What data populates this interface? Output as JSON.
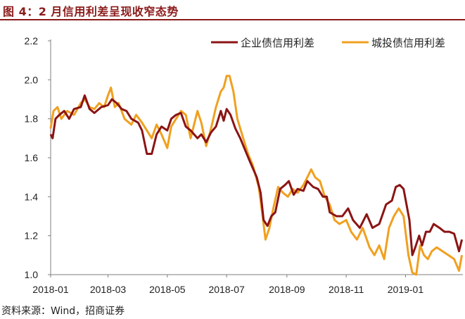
{
  "figure": {
    "title": "图 4：2 月信用利差呈现收窄态势",
    "source": "资料来源：Wind，招商证券"
  },
  "chart_data": {
    "type": "line",
    "xlabel": "",
    "ylabel": "",
    "ylim": [
      1.0,
      2.2
    ],
    "yticks": [
      "1.0",
      "1.2",
      "1.4",
      "1.6",
      "1.8",
      "2.0",
      "2.2"
    ],
    "xticks": [
      "2018-01",
      "2018-03",
      "2018-05",
      "2018-07",
      "2018-09",
      "2018-11",
      "2019-01"
    ],
    "xlim": [
      "2018-01-01",
      "2019-03-01"
    ],
    "grid": false,
    "legend_position": "top-right",
    "series": [
      {
        "name": "企业债信用利差",
        "color": "#8B1414",
        "points": [
          [
            "2018-01-01",
            1.72
          ],
          [
            "2018-01-03",
            1.7
          ],
          [
            "2018-01-06",
            1.8
          ],
          [
            "2018-01-10",
            1.82
          ],
          [
            "2018-01-15",
            1.84
          ],
          [
            "2018-01-20",
            1.8
          ],
          [
            "2018-01-25",
            1.85
          ],
          [
            "2018-02-01",
            1.86
          ],
          [
            "2018-02-05",
            1.92
          ],
          [
            "2018-02-10",
            1.85
          ],
          [
            "2018-02-15",
            1.83
          ],
          [
            "2018-02-22",
            1.86
          ],
          [
            "2018-03-01",
            1.87
          ],
          [
            "2018-03-05",
            1.9
          ],
          [
            "2018-03-10",
            1.88
          ],
          [
            "2018-03-15",
            1.85
          ],
          [
            "2018-03-20",
            1.84
          ],
          [
            "2018-03-25",
            1.8
          ],
          [
            "2018-04-01",
            1.78
          ],
          [
            "2018-04-05",
            1.74
          ],
          [
            "2018-04-10",
            1.62
          ],
          [
            "2018-04-15",
            1.62
          ],
          [
            "2018-04-20",
            1.72
          ],
          [
            "2018-04-25",
            1.76
          ],
          [
            "2018-05-01",
            1.74
          ],
          [
            "2018-05-05",
            1.8
          ],
          [
            "2018-05-10",
            1.82
          ],
          [
            "2018-05-15",
            1.83
          ],
          [
            "2018-05-20",
            1.76
          ],
          [
            "2018-05-25",
            1.74
          ],
          [
            "2018-06-01",
            1.7
          ],
          [
            "2018-06-05",
            1.72
          ],
          [
            "2018-06-10",
            1.68
          ],
          [
            "2018-06-15",
            1.73
          ],
          [
            "2018-06-20",
            1.76
          ],
          [
            "2018-06-25",
            1.84
          ],
          [
            "2018-06-28",
            1.79
          ],
          [
            "2018-07-01",
            1.85
          ],
          [
            "2018-07-05",
            1.82
          ],
          [
            "2018-07-10",
            1.75
          ],
          [
            "2018-07-15",
            1.7
          ],
          [
            "2018-07-20",
            1.64
          ],
          [
            "2018-07-25",
            1.58
          ],
          [
            "2018-08-01",
            1.5
          ],
          [
            "2018-08-05",
            1.42
          ],
          [
            "2018-08-08",
            1.28
          ],
          [
            "2018-08-12",
            1.25
          ],
          [
            "2018-08-16",
            1.3
          ],
          [
            "2018-08-20",
            1.32
          ],
          [
            "2018-08-25",
            1.44
          ],
          [
            "2018-08-30",
            1.46
          ],
          [
            "2018-09-03",
            1.48
          ],
          [
            "2018-09-08",
            1.41
          ],
          [
            "2018-09-12",
            1.44
          ],
          [
            "2018-09-18",
            1.43
          ],
          [
            "2018-09-22",
            1.48
          ],
          [
            "2018-09-28",
            1.45
          ],
          [
            "2018-10-03",
            1.44
          ],
          [
            "2018-10-08",
            1.4
          ],
          [
            "2018-10-12",
            1.4
          ],
          [
            "2018-10-15",
            1.32
          ],
          [
            "2018-10-22",
            1.3
          ],
          [
            "2018-10-28",
            1.3
          ],
          [
            "2018-11-03",
            1.34
          ],
          [
            "2018-11-08",
            1.28
          ],
          [
            "2018-11-15",
            1.24
          ],
          [
            "2018-11-22",
            1.31
          ],
          [
            "2018-11-28",
            1.24
          ],
          [
            "2018-12-05",
            1.26
          ],
          [
            "2018-12-12",
            1.36
          ],
          [
            "2018-12-18",
            1.38
          ],
          [
            "2018-12-22",
            1.45
          ],
          [
            "2018-12-26",
            1.46
          ],
          [
            "2018-12-30",
            1.44
          ],
          [
            "2019-01-05",
            1.28
          ],
          [
            "2019-01-08",
            1.1
          ],
          [
            "2019-01-11",
            1.14
          ],
          [
            "2019-01-15",
            1.2
          ],
          [
            "2019-01-18",
            1.15
          ],
          [
            "2019-01-22",
            1.22
          ],
          [
            "2019-01-26",
            1.22
          ],
          [
            "2019-01-30",
            1.26
          ],
          [
            "2019-02-05",
            1.24
          ],
          [
            "2019-02-10",
            1.22
          ],
          [
            "2019-02-15",
            1.22
          ],
          [
            "2019-02-20",
            1.21
          ],
          [
            "2019-02-25",
            1.12
          ],
          [
            "2019-02-28",
            1.18
          ]
        ]
      },
      {
        "name": "城投债信用利差",
        "color": "#F0A020",
        "points": [
          [
            "2018-01-01",
            1.75
          ],
          [
            "2018-01-04",
            1.84
          ],
          [
            "2018-01-08",
            1.86
          ],
          [
            "2018-01-12",
            1.8
          ],
          [
            "2018-01-18",
            1.84
          ],
          [
            "2018-01-25",
            1.82
          ],
          [
            "2018-02-01",
            1.88
          ],
          [
            "2018-02-05",
            1.9
          ],
          [
            "2018-02-10",
            1.86
          ],
          [
            "2018-02-15",
            1.85
          ],
          [
            "2018-02-20",
            1.88
          ],
          [
            "2018-02-25",
            1.86
          ],
          [
            "2018-03-01",
            1.92
          ],
          [
            "2018-03-04",
            1.96
          ],
          [
            "2018-03-08",
            1.86
          ],
          [
            "2018-03-12",
            1.88
          ],
          [
            "2018-03-18",
            1.8
          ],
          [
            "2018-03-25",
            1.77
          ],
          [
            "2018-03-30",
            1.82
          ],
          [
            "2018-04-05",
            1.78
          ],
          [
            "2018-04-10",
            1.74
          ],
          [
            "2018-04-15",
            1.7
          ],
          [
            "2018-04-20",
            1.77
          ],
          [
            "2018-04-25",
            1.72
          ],
          [
            "2018-05-01",
            1.65
          ],
          [
            "2018-05-05",
            1.76
          ],
          [
            "2018-05-10",
            1.8
          ],
          [
            "2018-05-15",
            1.84
          ],
          [
            "2018-05-20",
            1.82
          ],
          [
            "2018-05-25",
            1.7
          ],
          [
            "2018-06-01",
            1.84
          ],
          [
            "2018-06-05",
            1.78
          ],
          [
            "2018-06-10",
            1.66
          ],
          [
            "2018-06-15",
            1.75
          ],
          [
            "2018-06-20",
            1.86
          ],
          [
            "2018-06-25",
            1.94
          ],
          [
            "2018-06-28",
            1.96
          ],
          [
            "2018-07-01",
            2.02
          ],
          [
            "2018-07-04",
            2.02
          ],
          [
            "2018-07-08",
            1.94
          ],
          [
            "2018-07-12",
            1.8
          ],
          [
            "2018-07-18",
            1.7
          ],
          [
            "2018-07-23",
            1.62
          ],
          [
            "2018-07-28",
            1.56
          ],
          [
            "2018-08-03",
            1.45
          ],
          [
            "2018-08-07",
            1.3
          ],
          [
            "2018-08-10",
            1.18
          ],
          [
            "2018-08-14",
            1.24
          ],
          [
            "2018-08-18",
            1.34
          ],
          [
            "2018-08-23",
            1.45
          ],
          [
            "2018-08-28",
            1.42
          ],
          [
            "2018-09-02",
            1.4
          ],
          [
            "2018-09-07",
            1.44
          ],
          [
            "2018-09-12",
            1.42
          ],
          [
            "2018-09-18",
            1.46
          ],
          [
            "2018-09-22",
            1.5
          ],
          [
            "2018-09-26",
            1.54
          ],
          [
            "2018-09-30",
            1.5
          ],
          [
            "2018-10-05",
            1.48
          ],
          [
            "2018-10-10",
            1.4
          ],
          [
            "2018-10-15",
            1.36
          ],
          [
            "2018-10-20",
            1.28
          ],
          [
            "2018-10-25",
            1.26
          ],
          [
            "2018-11-01",
            1.28
          ],
          [
            "2018-11-06",
            1.22
          ],
          [
            "2018-11-12",
            1.18
          ],
          [
            "2018-11-18",
            1.24
          ],
          [
            "2018-11-25",
            1.14
          ],
          [
            "2018-11-30",
            1.1
          ],
          [
            "2018-12-05",
            1.15
          ],
          [
            "2018-12-10",
            1.08
          ],
          [
            "2018-12-15",
            1.24
          ],
          [
            "2018-12-20",
            1.3
          ],
          [
            "2018-12-25",
            1.34
          ],
          [
            "2018-12-30",
            1.3
          ],
          [
            "2019-01-04",
            1.1
          ],
          [
            "2019-01-08",
            1.01
          ],
          [
            "2019-01-12",
            1.0
          ],
          [
            "2019-01-16",
            1.15
          ],
          [
            "2019-01-20",
            1.1
          ],
          [
            "2019-01-24",
            1.08
          ],
          [
            "2019-01-28",
            1.12
          ],
          [
            "2019-02-02",
            1.14
          ],
          [
            "2019-02-08",
            1.12
          ],
          [
            "2019-02-14",
            1.1
          ],
          [
            "2019-02-20",
            1.08
          ],
          [
            "2019-02-25",
            1.02
          ],
          [
            "2019-02-28",
            1.1
          ]
        ]
      }
    ]
  }
}
